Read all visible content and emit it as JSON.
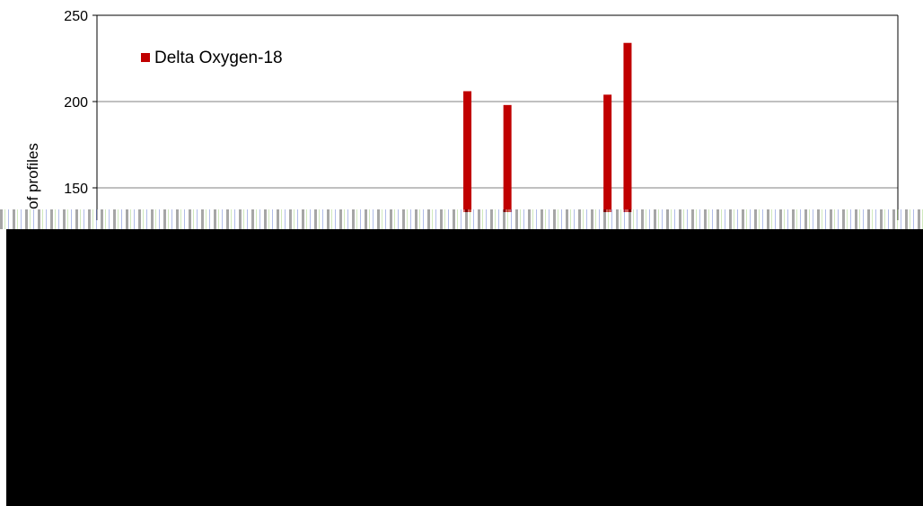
{
  "chart_data": {
    "type": "bar",
    "ylabel": "of profiles",
    "ylim": [
      100,
      250
    ],
    "yticks": [
      150,
      200,
      250
    ],
    "series": [
      {
        "name": "Delta Oxygen-18",
        "color": "#c00000",
        "bars": [
          {
            "index": 18,
            "value": 206
          },
          {
            "index": 20,
            "value": 198
          },
          {
            "index": 25,
            "value": 204
          },
          {
            "index": 26,
            "value": 234
          }
        ]
      }
    ],
    "category_count": 40,
    "grid": true,
    "legend_position": "top-left"
  }
}
